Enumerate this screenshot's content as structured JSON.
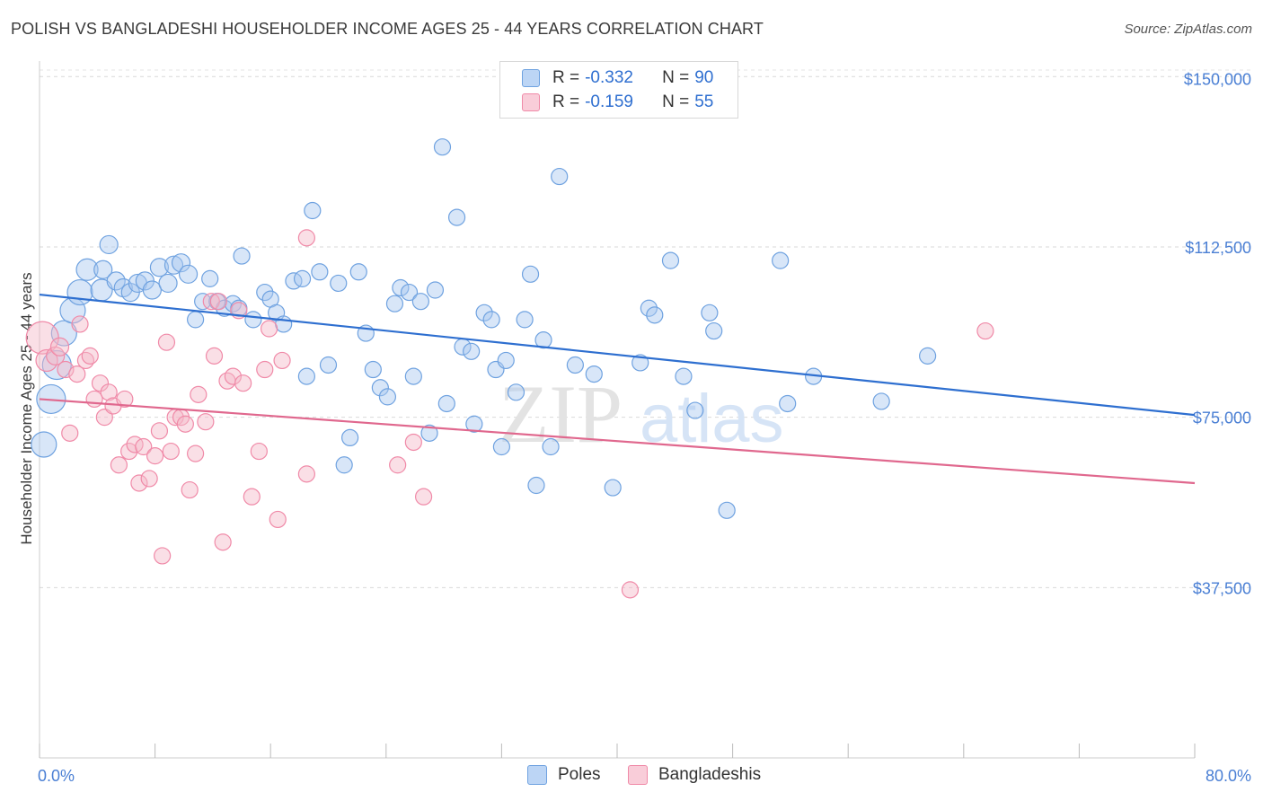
{
  "title": "POLISH VS BANGLADESHI HOUSEHOLDER INCOME AGES 25 - 44 YEARS CORRELATION CHART",
  "source": "Source: ZipAtlas.com",
  "legend": {
    "r_label": "R =",
    "n_label": "N =",
    "rows": [
      {
        "r": "-0.332",
        "n": "90",
        "color": "#a8c8f0"
      },
      {
        "r": "-0.159",
        "n": "55",
        "color": "#f5b8c8"
      }
    ]
  },
  "bottom_legend": [
    {
      "label": "Poles",
      "color": "#a8c8f0"
    },
    {
      "label": "Bangladeshis",
      "color": "#f5b8c8"
    }
  ],
  "chart_data": {
    "type": "scatter",
    "title": "POLISH VS BANGLADESHI HOUSEHOLDER INCOME AGES 25 - 44 YEARS CORRELATION CHART",
    "xlabel": "",
    "ylabel": "Householder Income Ages 25 - 44 years",
    "xlim": [
      0,
      80
    ],
    "ylim": [
      0,
      155000
    ],
    "x_tick_labels": [
      "0.0%",
      "80.0%"
    ],
    "y_ticks": [
      37500,
      75000,
      112500,
      150000
    ],
    "y_tick_labels": [
      "$37,500",
      "$75,000",
      "$112,500",
      "$150,000"
    ],
    "grid": true,
    "series": [
      {
        "name": "Poles",
        "color": "#6fa2e0",
        "trend": {
          "x": [
            0,
            80
          ],
          "y": [
            102000,
            75500
          ],
          "color": "#2e6fd0"
        },
        "points": [
          [
            0.3,
            69000,
            14
          ],
          [
            0.8,
            79000,
            16
          ],
          [
            1.2,
            86500,
            16
          ],
          [
            1.7,
            93500,
            14
          ],
          [
            2.3,
            98500,
            14
          ],
          [
            2.8,
            102500,
            14
          ],
          [
            3.3,
            107500,
            12
          ],
          [
            4.3,
            103000,
            12
          ],
          [
            4.4,
            107500,
            10
          ],
          [
            4.8,
            113000,
            10
          ],
          [
            5.3,
            105000,
            10
          ],
          [
            5.8,
            103500,
            10
          ],
          [
            6.3,
            102500,
            10
          ],
          [
            6.8,
            104500,
            10
          ],
          [
            7.3,
            105000,
            10
          ],
          [
            7.8,
            103000,
            10
          ],
          [
            8.3,
            108000,
            10
          ],
          [
            8.9,
            104500,
            10
          ],
          [
            9.3,
            108500,
            10
          ],
          [
            9.8,
            109000,
            10
          ],
          [
            10.3,
            106500,
            10
          ],
          [
            10.8,
            96500,
            9
          ],
          [
            11.3,
            100500,
            9
          ],
          [
            11.8,
            105500,
            9
          ],
          [
            12.3,
            100500,
            9
          ],
          [
            12.8,
            99000,
            9
          ],
          [
            13.4,
            100000,
            9
          ],
          [
            13.8,
            99000,
            9
          ],
          [
            14.0,
            110500,
            9
          ],
          [
            14.8,
            96500,
            9
          ],
          [
            15.6,
            102500,
            9
          ],
          [
            16.0,
            101000,
            9
          ],
          [
            16.4,
            98000,
            9
          ],
          [
            16.9,
            95500,
            9
          ],
          [
            17.6,
            105000,
            9
          ],
          [
            18.2,
            105500,
            9
          ],
          [
            18.5,
            84000,
            9
          ],
          [
            18.9,
            120500,
            9
          ],
          [
            19.4,
            107000,
            9
          ],
          [
            20.0,
            86500,
            9
          ],
          [
            20.7,
            104500,
            9
          ],
          [
            21.1,
            64500,
            9
          ],
          [
            21.5,
            70500,
            9
          ],
          [
            22.1,
            107000,
            9
          ],
          [
            22.6,
            93500,
            9
          ],
          [
            23.1,
            85500,
            9
          ],
          [
            23.6,
            81500,
            9
          ],
          [
            24.1,
            79500,
            9
          ],
          [
            24.6,
            100000,
            9
          ],
          [
            25.0,
            103500,
            9
          ],
          [
            25.6,
            102500,
            9
          ],
          [
            25.9,
            84000,
            9
          ],
          [
            26.4,
            100500,
            9
          ],
          [
            27.0,
            71500,
            9
          ],
          [
            27.4,
            103000,
            9
          ],
          [
            27.9,
            134500,
            9
          ],
          [
            28.2,
            78000,
            9
          ],
          [
            28.9,
            119000,
            9
          ],
          [
            29.3,
            90500,
            9
          ],
          [
            29.9,
            89500,
            9
          ],
          [
            30.1,
            73500,
            9
          ],
          [
            30.8,
            98000,
            9
          ],
          [
            31.3,
            96500,
            9
          ],
          [
            31.6,
            85500,
            9
          ],
          [
            32.0,
            68500,
            9
          ],
          [
            32.3,
            87500,
            9
          ],
          [
            33.0,
            80500,
            9
          ],
          [
            33.6,
            96500,
            9
          ],
          [
            34.0,
            106500,
            9
          ],
          [
            34.4,
            60000,
            9
          ],
          [
            34.9,
            92000,
            9
          ],
          [
            35.4,
            68500,
            9
          ],
          [
            36.0,
            128000,
            9
          ],
          [
            37.1,
            86500,
            9
          ],
          [
            38.4,
            84500,
            9
          ],
          [
            39.7,
            59500,
            9
          ],
          [
            41.6,
            87000,
            9
          ],
          [
            42.2,
            99000,
            9
          ],
          [
            42.6,
            97500,
            9
          ],
          [
            43.7,
            109500,
            9
          ],
          [
            44.6,
            84000,
            9
          ],
          [
            45.4,
            76500,
            9
          ],
          [
            46.4,
            98000,
            9
          ],
          [
            46.7,
            94000,
            9
          ],
          [
            47.6,
            54500,
            9
          ],
          [
            51.3,
            109500,
            9
          ],
          [
            51.8,
            78000,
            9
          ],
          [
            53.6,
            84000,
            9
          ],
          [
            58.3,
            78500,
            9
          ],
          [
            61.5,
            88500,
            9
          ]
        ]
      },
      {
        "name": "Bangladeshis",
        "color": "#f08aa8",
        "trend": {
          "x": [
            0,
            80
          ],
          "y": [
            79000,
            60500
          ],
          "color": "#e0688e"
        },
        "points": [
          [
            0.2,
            92500,
            18
          ],
          [
            0.5,
            87500,
            12
          ],
          [
            1.1,
            88500,
            10
          ],
          [
            1.4,
            90500,
            10
          ],
          [
            1.8,
            85500,
            9
          ],
          [
            2.1,
            71500,
            9
          ],
          [
            2.6,
            84500,
            9
          ],
          [
            2.8,
            95500,
            9
          ],
          [
            3.2,
            87500,
            9
          ],
          [
            3.5,
            88500,
            9
          ],
          [
            3.8,
            79000,
            9
          ],
          [
            4.2,
            82500,
            9
          ],
          [
            4.5,
            75000,
            9
          ],
          [
            4.8,
            80500,
            9
          ],
          [
            5.1,
            77500,
            9
          ],
          [
            5.5,
            64500,
            9
          ],
          [
            5.9,
            79000,
            9
          ],
          [
            6.2,
            67500,
            9
          ],
          [
            6.6,
            69000,
            9
          ],
          [
            6.9,
            60500,
            9
          ],
          [
            7.2,
            68500,
            9
          ],
          [
            7.6,
            61500,
            9
          ],
          [
            8.0,
            66500,
            9
          ],
          [
            8.3,
            72000,
            9
          ],
          [
            8.5,
            44500,
            9
          ],
          [
            8.8,
            91500,
            9
          ],
          [
            9.1,
            67500,
            9
          ],
          [
            9.4,
            75000,
            9
          ],
          [
            9.8,
            75000,
            9
          ],
          [
            10.1,
            73500,
            9
          ],
          [
            10.4,
            59000,
            9
          ],
          [
            10.8,
            67000,
            9
          ],
          [
            11.0,
            80000,
            9
          ],
          [
            11.5,
            74000,
            9
          ],
          [
            11.9,
            100500,
            9
          ],
          [
            12.1,
            88500,
            9
          ],
          [
            12.4,
            100500,
            9
          ],
          [
            12.7,
            47500,
            9
          ],
          [
            13.0,
            83000,
            9
          ],
          [
            13.4,
            84000,
            9
          ],
          [
            13.8,
            98500,
            9
          ],
          [
            14.1,
            82500,
            9
          ],
          [
            14.7,
            57500,
            9
          ],
          [
            15.2,
            67500,
            9
          ],
          [
            15.6,
            85500,
            9
          ],
          [
            15.9,
            94500,
            9
          ],
          [
            16.5,
            52500,
            9
          ],
          [
            16.8,
            87500,
            9
          ],
          [
            18.5,
            114500,
            9
          ],
          [
            18.5,
            62500,
            9
          ],
          [
            24.8,
            64500,
            9
          ],
          [
            25.9,
            69500,
            9
          ],
          [
            26.6,
            57500,
            9
          ],
          [
            40.9,
            37000,
            9
          ],
          [
            65.5,
            94000,
            9
          ]
        ]
      }
    ]
  }
}
